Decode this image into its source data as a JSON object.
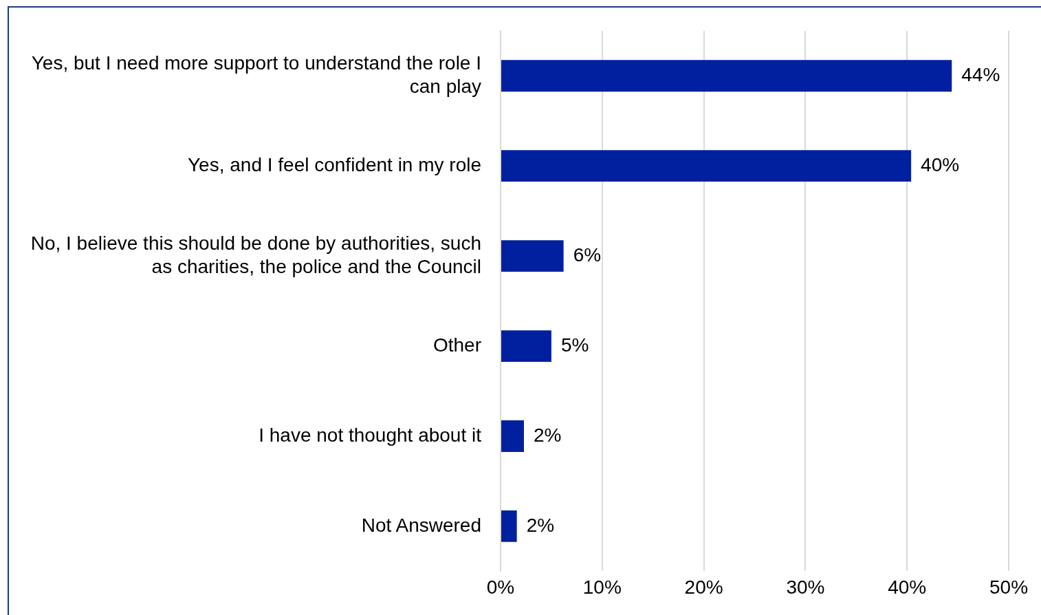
{
  "chart_data": {
    "type": "bar",
    "orientation": "horizontal",
    "categories": [
      "Yes, but I need more support to understand the role I can play",
      "Yes, and I feel confident in my role",
      "No, I believe this should be done by authorities, such as charities, the police and the Council",
      "Other",
      "I have not thought about it",
      "Not Answered"
    ],
    "values": [
      44.4,
      40.4,
      6.2,
      5.0,
      2.3,
      1.6
    ],
    "value_labels": [
      "44%",
      "40%",
      "6%",
      "5%",
      "2%",
      "2%"
    ],
    "color": "#00209f",
    "xlim": [
      0,
      50
    ],
    "xticks": [
      {
        "value": 0,
        "label": "0%"
      },
      {
        "value": 10,
        "label": "10%"
      },
      {
        "value": 20,
        "label": "20%"
      },
      {
        "value": 30,
        "label": "30%"
      },
      {
        "value": 40,
        "label": "40%"
      },
      {
        "value": 50,
        "label": "50%"
      }
    ],
    "grid": "x",
    "legend": false
  }
}
